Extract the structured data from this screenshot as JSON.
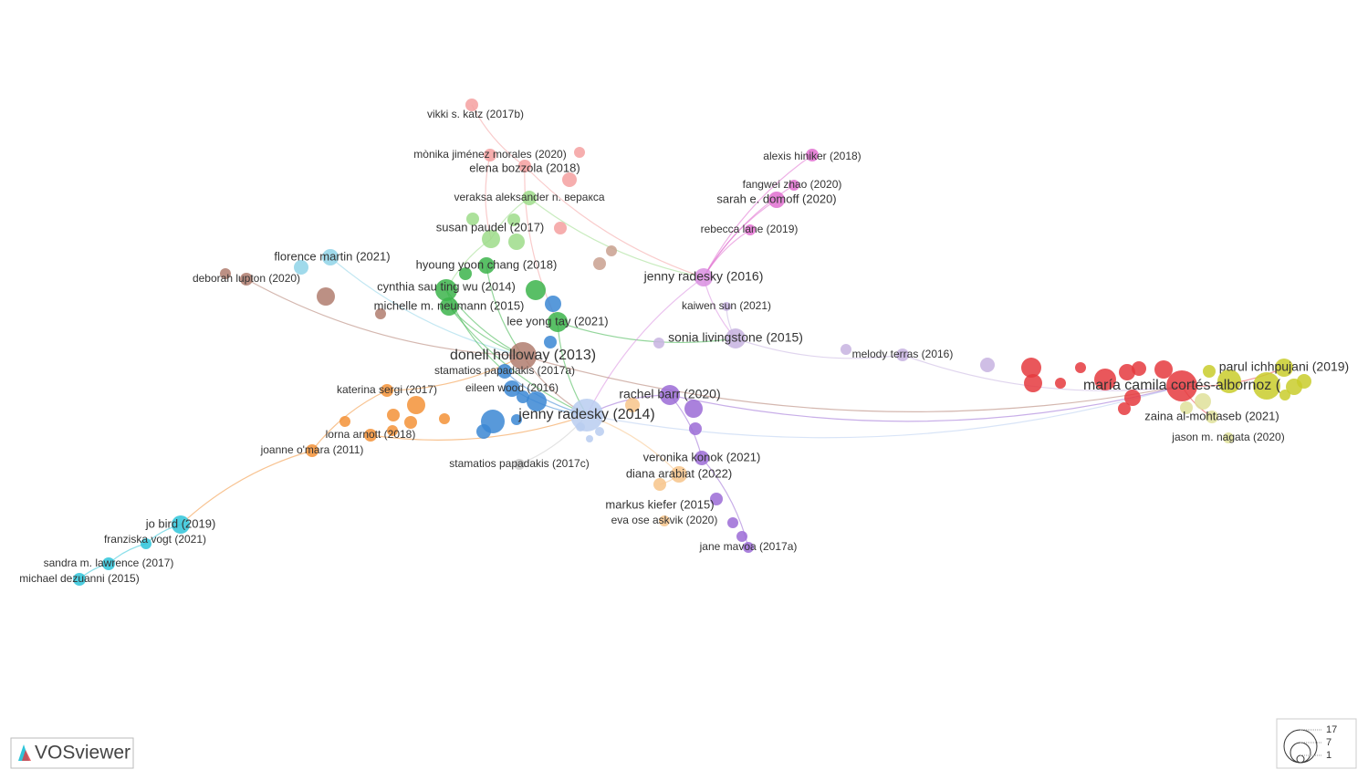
{
  "nodes": [
    {
      "label": "vikki s. katz (2017b)"
    },
    {
      "label": "mònika jiménez morales (2020)"
    },
    {
      "label": "elena bozzola (2018)"
    },
    {
      "label": "veraksa aleksander n. веракса"
    },
    {
      "label": "susan paudel (2017)"
    },
    {
      "label": "alexis hiniker (2018)"
    },
    {
      "label": "fangwei zhao (2020)"
    },
    {
      "label": "sarah e. domoff (2020)"
    },
    {
      "label": "rebecca lane (2019)"
    },
    {
      "label": "florence martin (2021)"
    },
    {
      "label": "deborah lupton (2020)"
    },
    {
      "label": "hyoung yoon chang (2018)"
    },
    {
      "label": "cynthia sau ting wu (2014)"
    },
    {
      "label": "michelle m. neumann (2015)"
    },
    {
      "label": "lee yong tay (2021)"
    },
    {
      "label": "jenny radesky (2016)"
    },
    {
      "label": "kaiwen sun (2021)"
    },
    {
      "label": "sonia livingstone (2015)"
    },
    {
      "label": "melody terras (2016)"
    },
    {
      "label": "donell holloway (2013)"
    },
    {
      "label": "stamatios papadakis (2017a)"
    },
    {
      "label": "katerina sergi (2017)"
    },
    {
      "label": "eileen wood (2016)"
    },
    {
      "label": "rachel barr (2020)"
    },
    {
      "label": "jenny radesky (2014)"
    },
    {
      "label": "lorna arnott (2018)"
    },
    {
      "label": "joanne o'mara (2011)"
    },
    {
      "label": "stamatios papadakis (2017c)"
    },
    {
      "label": "veronika konok (2021)"
    },
    {
      "label": "diana arabiat (2022)"
    },
    {
      "label": "markus kiefer (2015)"
    },
    {
      "label": "eva ose askvik (2020)"
    },
    {
      "label": "jane mavoa (2017a)"
    },
    {
      "label": "jo bird (2019)"
    },
    {
      "label": "franziska vogt (2021)"
    },
    {
      "label": "sandra m. lawrence (2017)"
    },
    {
      "label": "michael dezuanni (2015)"
    },
    {
      "label": "maría camila cortés-albornoz ("
    },
    {
      "label": "parul ichhpujani (2019)"
    },
    {
      "label": "zaina al-mohtaseb (2021)"
    },
    {
      "label": "jason m. nagata (2020)"
    }
  ],
  "legend": {
    "values": [
      17,
      7,
      1
    ]
  },
  "logo": {
    "text": "VOSviewer"
  }
}
